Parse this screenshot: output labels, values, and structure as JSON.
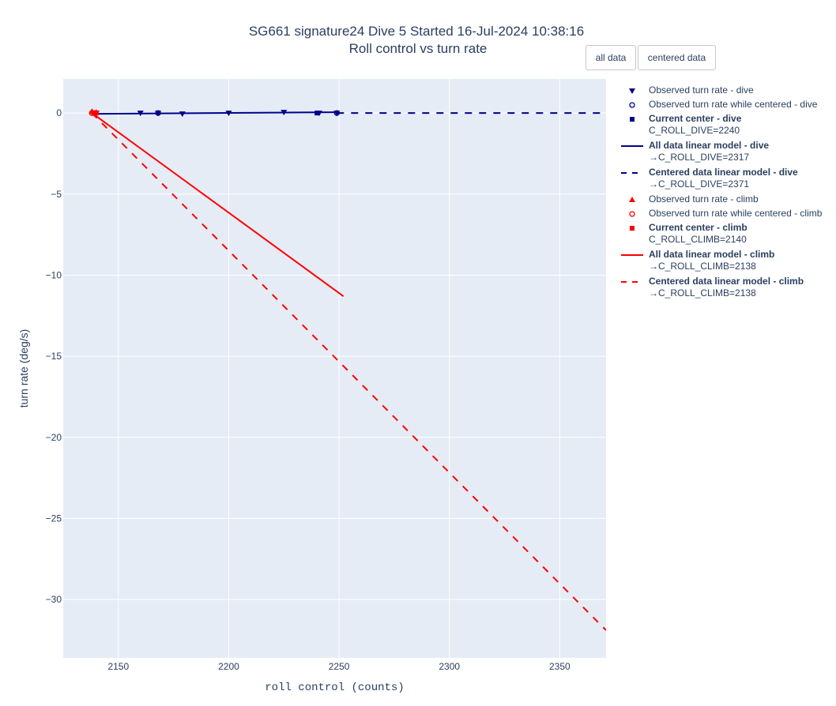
{
  "title": {
    "line1": "SG661 signature24 Dive 5 Started 16-Jul-2024 10:38:16",
    "line2": "Roll control vs turn rate"
  },
  "buttons": {
    "all_data": "all data",
    "centered_data": "centered data"
  },
  "colors": {
    "dive": "#00008b",
    "climb": "#ff0000",
    "plot_bg": "#e5ecf6",
    "grid": "#ffffff"
  },
  "legend": [
    {
      "symbol": "triangle-down",
      "series": "dive",
      "label": "Observed turn rate - dive"
    },
    {
      "symbol": "circle-open",
      "series": "dive",
      "label": "Observed turn rate while centered - dive"
    },
    {
      "symbol": "square",
      "series": "dive",
      "label": "Current center - dive",
      "sublabel": "C_ROLL_DIVE=2240"
    },
    {
      "symbol": "line-solid",
      "series": "dive",
      "label": "All data linear model - dive",
      "sublabel": "→C_ROLL_DIVE=2317"
    },
    {
      "symbol": "line-dash",
      "series": "dive",
      "label": "Centered data linear model - dive",
      "sublabel": "→C_ROLL_DIVE=2371"
    },
    {
      "symbol": "triangle-up",
      "series": "climb",
      "label": "Observed turn rate - climb"
    },
    {
      "symbol": "circle-open",
      "series": "climb",
      "label": "Observed turn rate while centered - climb"
    },
    {
      "symbol": "square",
      "series": "climb",
      "label": "Current center - climb",
      "sublabel": "C_ROLL_CLIMB=2140"
    },
    {
      "symbol": "line-solid",
      "series": "climb",
      "label": "All data linear model - climb",
      "sublabel": "→C_ROLL_CLIMB=2138"
    },
    {
      "symbol": "line-dash",
      "series": "climb",
      "label": "Centered data linear model - climb",
      "sublabel": "→C_ROLL_CLIMB=2138"
    }
  ],
  "chart_data": {
    "type": "scatter",
    "title": "SG661 signature24 Dive 5 Started 16-Jul-2024 10:38:16 / Roll control vs turn rate",
    "xlabel": "roll control (counts)",
    "ylabel": "turn rate (deg/s)",
    "xlim": [
      2125,
      2371
    ],
    "ylim": [
      -33.6,
      2.1
    ],
    "xticks": [
      2150,
      2200,
      2250,
      2300,
      2350
    ],
    "yticks": [
      0,
      -5,
      -10,
      -15,
      -20,
      -25,
      -30
    ],
    "grid": true,
    "legend_position": "right",
    "series": [
      {
        "name": "Observed turn rate - dive",
        "kind": "markers",
        "marker": "triangle-down",
        "color": "#00008b",
        "x": [
          2140,
          2160,
          2168,
          2179,
          2200,
          2225,
          2241,
          2249
        ],
        "y": [
          0.0,
          0.0,
          0.0,
          -0.05,
          0.0,
          0.05,
          0.0,
          0.0
        ]
      },
      {
        "name": "Observed turn rate while centered - dive",
        "kind": "markers",
        "marker": "circle-open",
        "color": "#00008b",
        "x": [
          2168,
          2249
        ],
        "y": [
          0.0,
          0.0
        ]
      },
      {
        "name": "Current center - dive",
        "kind": "markers",
        "marker": "square",
        "color": "#00008b",
        "x": [
          2240
        ],
        "y": [
          0.0
        ]
      },
      {
        "name": "All data linear model - dive",
        "kind": "line",
        "dash": "solid",
        "color": "#00008b",
        "x": [
          2138,
          2249
        ],
        "y": [
          -0.05,
          0.05
        ]
      },
      {
        "name": "Centered data linear model - dive",
        "kind": "line",
        "dash": "dash",
        "color": "#00008b",
        "x": [
          2249,
          2371
        ],
        "y": [
          0.0,
          0.0
        ]
      },
      {
        "name": "Observed turn rate - climb",
        "kind": "markers",
        "marker": "triangle-up",
        "color": "#ff0000",
        "x": [
          2138,
          2139,
          2140
        ],
        "y": [
          0.1,
          0.0,
          0.05
        ]
      },
      {
        "name": "Observed turn rate while centered - climb",
        "kind": "markers",
        "marker": "circle-open",
        "color": "#ff0000",
        "x": [
          2138,
          2139
        ],
        "y": [
          0.0,
          0.0
        ]
      },
      {
        "name": "Current center - climb",
        "kind": "markers",
        "marker": "square",
        "color": "#ff0000",
        "x": [
          2140
        ],
        "y": [
          0.0
        ]
      },
      {
        "name": "All data linear model - climb",
        "kind": "line",
        "dash": "solid",
        "color": "#ff0000",
        "x": [
          2138,
          2252
        ],
        "y": [
          0.0,
          -11.3
        ]
      },
      {
        "name": "Centered data linear model - climb",
        "kind": "line",
        "dash": "dash",
        "color": "#ff0000",
        "x": [
          2138,
          2371
        ],
        "y": [
          0.0,
          -31.9
        ]
      }
    ]
  }
}
